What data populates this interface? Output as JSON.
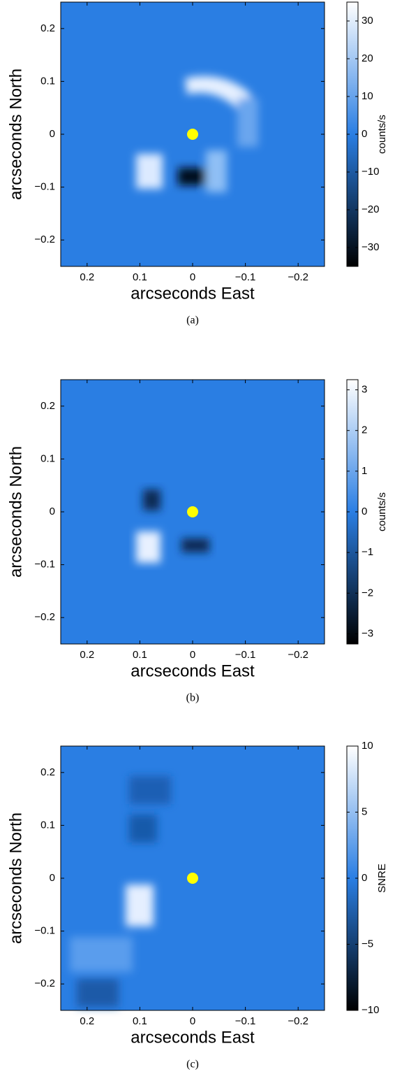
{
  "chart_data": [
    {
      "type": "heatmap",
      "xlabel": "arcseconds East",
      "ylabel": "arcseconds North",
      "caption": "(a)",
      "xlim": [
        0.25,
        -0.25
      ],
      "ylim": [
        -0.25,
        0.25
      ],
      "xticks": [
        0.2,
        0.1,
        0,
        {
          "value": -0.1,
          "label": "−0.1"
        },
        {
          "value": -0.2,
          "label": "−0.2"
        }
      ],
      "yticks": [
        {
          "value": -0.2,
          "label": "−0.2"
        },
        {
          "value": -0.1,
          "label": "−0.1"
        },
        0,
        0.1,
        0.2
      ],
      "clim": [
        -35,
        35
      ],
      "cticks": [
        {
          "value": -30,
          "label": "−30"
        },
        {
          "value": -20,
          "label": "−20"
        },
        {
          "value": -10,
          "label": "−10"
        },
        0,
        10,
        20,
        30
      ],
      "colorbar_label": "counts/s",
      "marker": {
        "x": 0,
        "y": 0,
        "color": "#ffff00"
      }
    },
    {
      "type": "heatmap",
      "xlabel": "arcseconds East",
      "ylabel": "arcseconds North",
      "caption": "(b)",
      "xlim": [
        0.25,
        -0.25
      ],
      "ylim": [
        -0.25,
        0.25
      ],
      "xticks": [
        0.2,
        0.1,
        0,
        {
          "value": -0.1,
          "label": "−0.1"
        },
        {
          "value": -0.2,
          "label": "−0.2"
        }
      ],
      "yticks": [
        {
          "value": -0.2,
          "label": "−0.2"
        },
        {
          "value": -0.1,
          "label": "−0.1"
        },
        0,
        0.1,
        0.2
      ],
      "clim": [
        -3.25,
        3.25
      ],
      "cticks": [
        {
          "value": -3,
          "label": "−3"
        },
        {
          "value": -2,
          "label": "−2"
        },
        {
          "value": -1,
          "label": "−1"
        },
        0,
        1,
        2,
        3
      ],
      "colorbar_label": "counts/s",
      "marker": {
        "x": 0,
        "y": 0,
        "color": "#ffff00"
      }
    },
    {
      "type": "heatmap",
      "xlabel": "arcseconds East",
      "ylabel": "arcseconds North",
      "caption": "(c)",
      "xlim": [
        0.25,
        -0.25
      ],
      "ylim": [
        -0.25,
        0.25
      ],
      "xticks": [
        0.2,
        0.1,
        0,
        {
          "value": -0.1,
          "label": "−0.1"
        },
        {
          "value": -0.2,
          "label": "−0.2"
        }
      ],
      "yticks": [
        {
          "value": -0.2,
          "label": "−0.2"
        },
        {
          "value": -0.1,
          "label": "−0.1"
        },
        0,
        0.1,
        0.2
      ],
      "clim": [
        -10,
        10
      ],
      "cticks": [
        {
          "value": -10,
          "label": "−10"
        },
        {
          "value": -5,
          "label": "−5"
        },
        0,
        5,
        10
      ],
      "colorbar_label": "SNRE",
      "marker": {
        "x": 0,
        "y": 0,
        "color": "#ffff00"
      }
    }
  ]
}
